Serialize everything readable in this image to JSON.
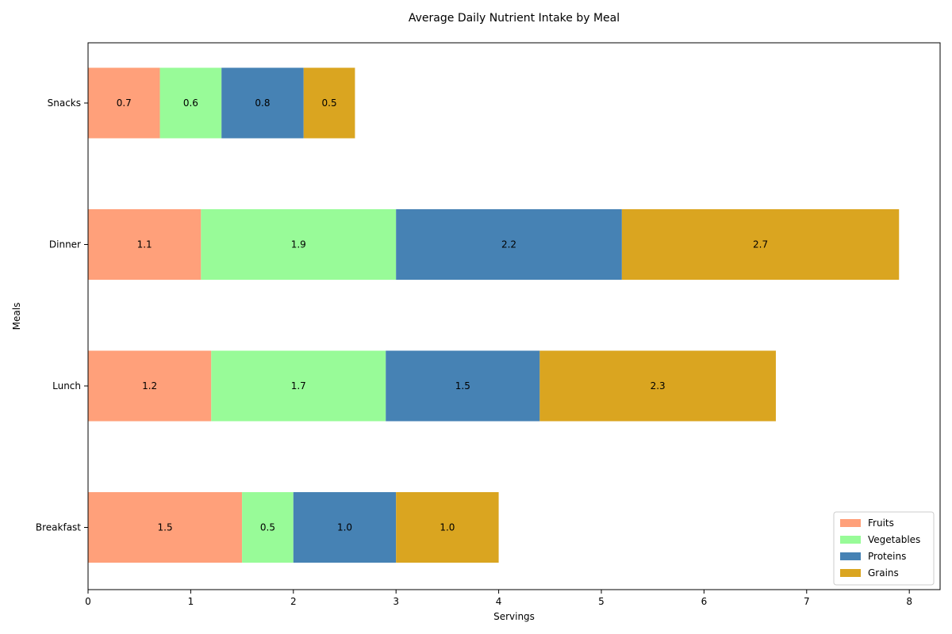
{
  "chart_data": {
    "type": "bar",
    "orientation": "horizontal",
    "stacked": true,
    "title": "Average Daily Nutrient Intake by Meal",
    "xlabel": "Servings",
    "ylabel": "Meals",
    "xlim": [
      0,
      8.3
    ],
    "xticks": [
      0,
      1,
      2,
      3,
      4,
      5,
      6,
      7,
      8
    ],
    "categories": [
      "Breakfast",
      "Lunch",
      "Dinner",
      "Snacks"
    ],
    "series": [
      {
        "name": "Fruits",
        "color": "#FFA07A",
        "values": [
          1.5,
          1.2,
          1.1,
          0.7
        ]
      },
      {
        "name": "Vegetables",
        "color": "#98FB98",
        "values": [
          0.5,
          1.7,
          1.9,
          0.6
        ]
      },
      {
        "name": "Proteins",
        "color": "#4682B4",
        "values": [
          1.0,
          1.5,
          2.2,
          0.8
        ]
      },
      {
        "name": "Grains",
        "color": "#DAA520",
        "values": [
          1.0,
          2.3,
          2.7,
          0.5
        ]
      }
    ],
    "legend_position": "lower-right",
    "grid": false
  }
}
